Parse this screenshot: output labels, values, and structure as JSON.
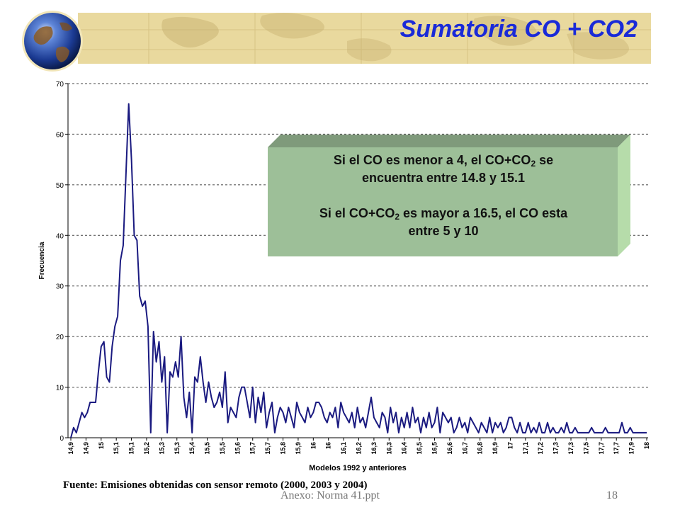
{
  "slide": {
    "title": "Sumatoria CO + CO2",
    "source": "Fuente: Emisiones obtenidas con sensor remoto (2000, 2003 y 2004)",
    "footer": "Anexo: Norma 41.ppt",
    "page_number": "18"
  },
  "callout": {
    "line1_a": "Si el CO es menor a 4, el CO+CO",
    "line1_sub": "2",
    "line1_b": " se",
    "line2": "encuentra entre 14.8 y 15.1",
    "line3_a": "Si el CO+CO",
    "line3_sub": "2",
    "line3_b": " es mayor a 16.5, el CO esta",
    "line4": "entre 5 y 10"
  },
  "colors": {
    "line": "#1a1a80",
    "callout_face": "#9dbf98",
    "title": "#1a2ad8",
    "banner": "#e9d99e"
  },
  "chart_data": {
    "type": "line",
    "xlabel": "Modelos 1992 y anteriores",
    "ylabel": "Frecuencia",
    "ylim": [
      0,
      70
    ],
    "yticks": [
      0,
      10,
      20,
      30,
      40,
      50,
      60,
      70
    ],
    "grid": "horizontal dashed",
    "tick_labels": [
      "14,9",
      "14,9",
      "15",
      "15,1",
      "15,1",
      "15,2",
      "15,3",
      "15,3",
      "15,4",
      "15,5",
      "15,5",
      "15,6",
      "15,7",
      "15,7",
      "15,8",
      "15,9",
      "16",
      "16",
      "16,1",
      "16,2",
      "16,3",
      "16,3",
      "16,4",
      "16,5",
      "16,5",
      "16,6",
      "16,7",
      "16,8",
      "16,9",
      "17",
      "17,1",
      "17,2",
      "17,3",
      "17,3",
      "17,5",
      "17,7",
      "17,7",
      "17,9",
      "18"
    ],
    "series": [
      {
        "values": [
          0,
          2,
          1,
          3,
          5,
          4,
          5,
          7,
          7,
          7,
          13,
          18,
          19,
          12,
          11,
          18,
          22,
          24,
          35,
          38,
          52,
          66,
          55,
          40,
          39,
          28,
          26,
          27,
          22,
          1,
          21,
          15,
          19,
          11,
          16,
          1,
          13,
          12,
          15,
          12,
          20,
          8,
          4,
          9,
          1,
          12,
          11,
          16,
          11,
          7,
          11,
          8,
          6,
          7,
          9,
          6,
          13,
          3,
          6,
          5,
          4,
          8,
          10,
          10,
          7,
          4,
          10,
          3,
          8,
          5,
          9,
          2,
          5,
          7,
          1,
          4,
          6,
          5,
          3,
          6,
          4,
          2,
          7,
          5,
          4,
          3,
          6,
          4,
          5,
          7,
          7,
          6,
          4,
          3,
          5,
          4,
          6,
          2,
          7,
          5,
          4,
          3,
          5,
          2,
          6,
          3,
          4,
          2,
          5,
          8,
          4,
          3,
          2,
          5,
          4,
          1,
          6,
          3,
          5,
          1,
          4,
          2,
          5,
          2,
          6,
          3,
          4,
          1,
          4,
          2,
          5,
          2,
          3,
          6,
          1,
          5,
          4,
          3,
          4,
          1,
          2,
          4,
          2,
          3,
          1,
          4,
          3,
          2,
          1,
          3,
          2,
          1,
          4,
          1,
          3,
          2,
          3,
          1,
          2,
          4,
          4,
          2,
          1,
          3,
          1,
          1,
          3,
          1,
          2,
          1,
          3,
          1,
          1,
          3,
          1,
          2,
          1,
          1,
          2,
          1,
          3,
          1,
          1,
          2,
          1,
          1,
          1,
          1,
          1,
          2,
          1,
          1,
          1,
          1,
          2,
          1,
          1,
          1,
          1,
          1,
          3,
          1,
          1,
          2,
          1,
          1,
          1,
          1,
          1,
          1
        ]
      }
    ]
  }
}
